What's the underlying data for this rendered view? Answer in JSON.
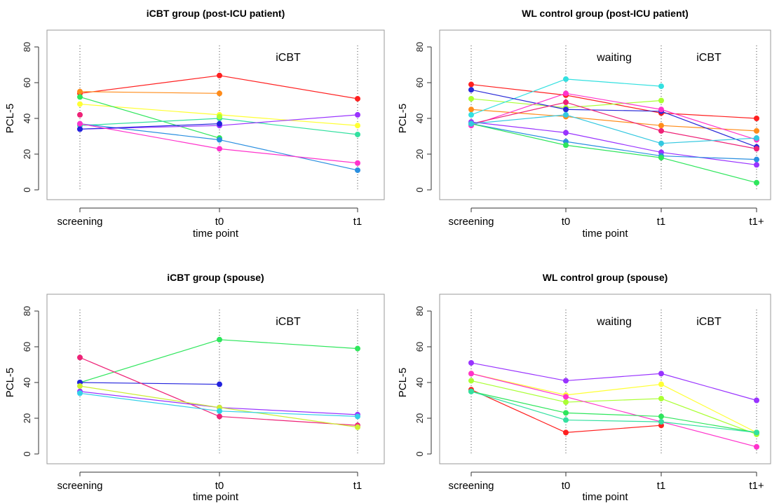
{
  "chart_data": [
    {
      "type": "line",
      "title": "iCBT group (post-ICU patient)",
      "xlabel": "time point",
      "ylabel": "PCL-5",
      "categories": [
        "screening",
        "t0",
        "t1"
      ],
      "ylim": [
        0,
        80
      ],
      "yticks": [
        0,
        20,
        40,
        60,
        80
      ],
      "phase_labels": [
        "",
        "iCBT"
      ],
      "grid": false,
      "series": [
        {
          "color": "#ff2020",
          "values": [
            54,
            64,
            51
          ]
        },
        {
          "color": "#ff8c1a",
          "values": [
            55,
            54,
            null
          ]
        },
        {
          "color": "#ffff33",
          "values": [
            48,
            42,
            36
          ]
        },
        {
          "color": "#2ee65c",
          "values": [
            52,
            29,
            null
          ]
        },
        {
          "color": "#33e0a0",
          "values": [
            36,
            40,
            31
          ]
        },
        {
          "color": "#2a8fe0",
          "values": [
            37,
            28,
            11
          ]
        },
        {
          "color": "#9933ff",
          "values": [
            34,
            36,
            42
          ]
        },
        {
          "color": "#2222dd",
          "values": [
            34,
            37,
            null
          ]
        },
        {
          "color": "#ff33cc",
          "values": [
            37,
            23,
            15
          ]
        },
        {
          "color": "#ee2277",
          "values": [
            42,
            null,
            null
          ]
        },
        {
          "color": "#aaff33",
          "values": [
            null,
            41,
            null
          ]
        }
      ]
    },
    {
      "type": "line",
      "title": "WL control group (post-ICU patient)",
      "xlabel": "time point",
      "ylabel": "PCL-5",
      "categories": [
        "screening",
        "t0",
        "t1",
        "t1+"
      ],
      "ylim": [
        0,
        80
      ],
      "yticks": [
        0,
        20,
        40,
        60,
        80
      ],
      "phase_labels": [
        "",
        "waiting",
        "iCBT"
      ],
      "grid": false,
      "series": [
        {
          "color": "#ff2020",
          "values": [
            59,
            53,
            43,
            40
          ]
        },
        {
          "color": "#ff8c1a",
          "values": [
            45,
            41,
            36,
            33
          ]
        },
        {
          "color": "#aaff33",
          "values": [
            51,
            46,
            50,
            null
          ]
        },
        {
          "color": "#33e0e0",
          "values": [
            42,
            62,
            58,
            null
          ]
        },
        {
          "color": "#2a2ad8",
          "values": [
            56,
            45,
            44,
            24
          ]
        },
        {
          "color": "#ff33cc",
          "values": [
            36,
            54,
            45,
            28
          ]
        },
        {
          "color": "#ee2277",
          "values": [
            37,
            49,
            33,
            23
          ]
        },
        {
          "color": "#9933ff",
          "values": [
            38,
            32,
            21,
            14
          ]
        },
        {
          "color": "#2a8fe0",
          "values": [
            37,
            27,
            19,
            17
          ]
        },
        {
          "color": "#2ee65c",
          "values": [
            37,
            25,
            18,
            4
          ]
        },
        {
          "color": "#33c8e0",
          "values": [
            37,
            42,
            26,
            29
          ]
        }
      ]
    },
    {
      "type": "line",
      "title": "iCBT group (spouse)",
      "xlabel": "time point",
      "ylabel": "PCL-5",
      "categories": [
        "screening",
        "t0",
        "t1"
      ],
      "ylim": [
        0,
        80
      ],
      "yticks": [
        0,
        20,
        40,
        60,
        80
      ],
      "phase_labels": [
        "",
        "iCBT"
      ],
      "grid": false,
      "series": [
        {
          "color": "#2ee65c",
          "values": [
            40,
            64,
            59
          ]
        },
        {
          "color": "#2222dd",
          "values": [
            40,
            39,
            null
          ]
        },
        {
          "color": "#ee2277",
          "values": [
            54,
            21,
            16
          ]
        },
        {
          "color": "#9933ff",
          "values": [
            35,
            26,
            22
          ]
        },
        {
          "color": "#ccee33",
          "values": [
            38,
            26,
            15
          ]
        },
        {
          "color": "#33d0e8",
          "values": [
            34,
            24,
            21
          ]
        }
      ]
    },
    {
      "type": "line",
      "title": "WL control group (spouse)",
      "xlabel": "time point",
      "ylabel": "PCL-5",
      "categories": [
        "screening",
        "t0",
        "t1",
        "t1+"
      ],
      "ylim": [
        0,
        80
      ],
      "yticks": [
        0,
        20,
        40,
        60,
        80
      ],
      "phase_labels": [
        "",
        "waiting",
        "iCBT"
      ],
      "grid": false,
      "series": [
        {
          "color": "#9933ff",
          "values": [
            51,
            41,
            45,
            30
          ]
        },
        {
          "color": "#ffff33",
          "values": [
            45,
            33,
            39,
            12
          ]
        },
        {
          "color": "#aaff33",
          "values": [
            41,
            29,
            31,
            11
          ]
        },
        {
          "color": "#ff33cc",
          "values": [
            45,
            32,
            18,
            4
          ]
        },
        {
          "color": "#ff2020",
          "values": [
            36,
            12,
            16,
            null
          ]
        },
        {
          "color": "#2ee65c",
          "values": [
            35,
            23,
            21,
            12
          ]
        },
        {
          "color": "#33e0a0",
          "values": [
            35,
            19,
            18,
            12
          ]
        }
      ]
    }
  ]
}
